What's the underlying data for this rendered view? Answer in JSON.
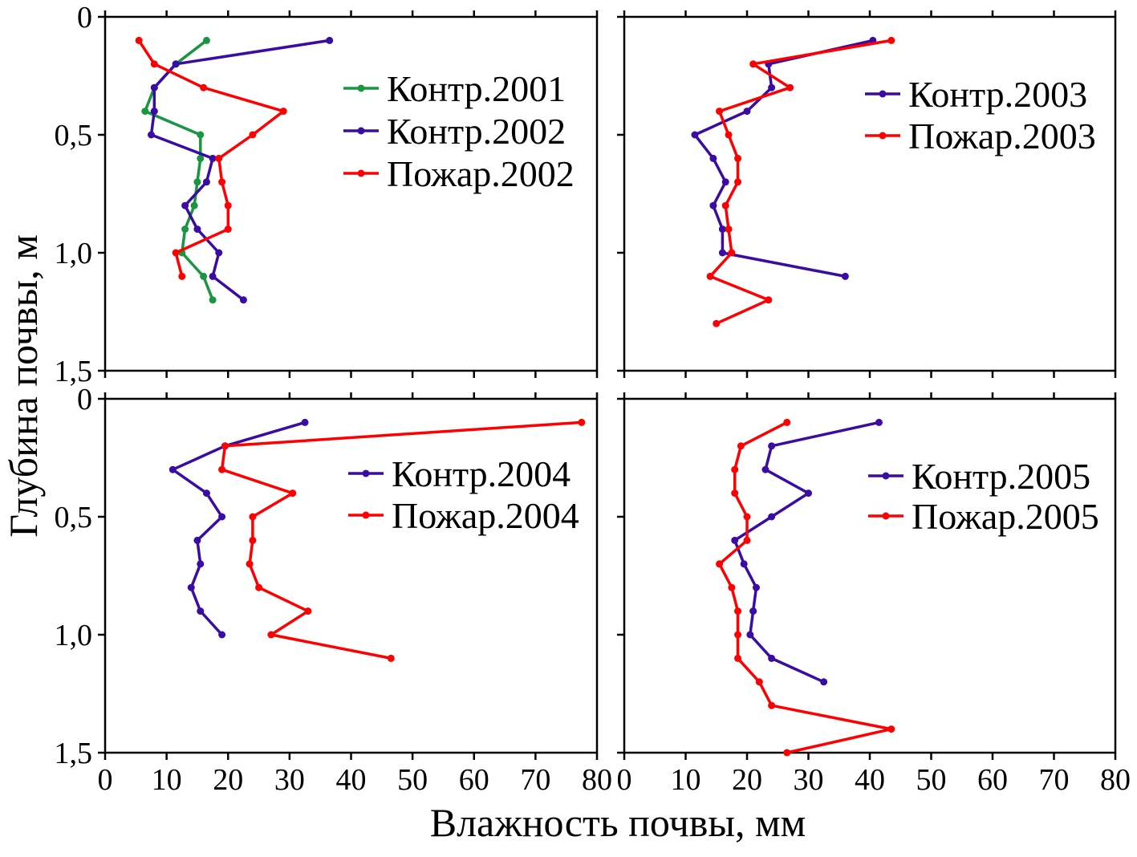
{
  "figure": {
    "xlabel": "Влажность почвы, мм",
    "ylabel": "Глубина почвы, м",
    "x_ticks": [
      "0",
      "10",
      "20",
      "30",
      "40",
      "50",
      "60",
      "70",
      "80"
    ],
    "y_ticks": [
      "0",
      "0,5",
      "1,0",
      "1,5"
    ]
  },
  "colors": {
    "green": "#1a9641",
    "purple": "#3a0ca3",
    "red": "#ff0000"
  },
  "chart_data": [
    {
      "type": "line",
      "panel": "top-left",
      "xlim": [
        0,
        80
      ],
      "ylim": [
        0,
        1.5
      ],
      "y_inverted": true,
      "legend_position": "right",
      "series": [
        {
          "name": "Контр.2001",
          "color": "#1a9641",
          "points": [
            [
              16.5,
              0.1
            ],
            [
              11.5,
              0.2
            ],
            [
              8,
              0.3
            ],
            [
              6.5,
              0.4
            ],
            [
              15.5,
              0.5
            ],
            [
              15.5,
              0.6
            ],
            [
              15,
              0.7
            ],
            [
              14.5,
              0.8
            ],
            [
              13,
              0.9
            ],
            [
              12.5,
              1.0
            ],
            [
              16,
              1.1
            ],
            [
              17.5,
              1.2
            ]
          ]
        },
        {
          "name": "Контр.2002",
          "color": "#3a0ca3",
          "points": [
            [
              36.5,
              0.1
            ],
            [
              11.5,
              0.2
            ],
            [
              8,
              0.3
            ],
            [
              8,
              0.4
            ],
            [
              7.5,
              0.5
            ],
            [
              17.5,
              0.6
            ],
            [
              16.5,
              0.7
            ],
            [
              13,
              0.8
            ],
            [
              15,
              0.9
            ],
            [
              18.5,
              1.0
            ],
            [
              17.5,
              1.1
            ],
            [
              22.5,
              1.2
            ]
          ]
        },
        {
          "name": "Пожар.2002",
          "color": "#ff0000",
          "points": [
            [
              5.5,
              0.1
            ],
            [
              8,
              0.2
            ],
            [
              16,
              0.3
            ],
            [
              29,
              0.4
            ],
            [
              24,
              0.5
            ],
            [
              18.5,
              0.6
            ],
            [
              19,
              0.7
            ],
            [
              20,
              0.8
            ],
            [
              20,
              0.9
            ],
            [
              11.5,
              1.0
            ],
            [
              12.5,
              1.1
            ]
          ]
        }
      ]
    },
    {
      "type": "line",
      "panel": "top-right",
      "xlim": [
        0,
        80
      ],
      "ylim": [
        0,
        1.5
      ],
      "y_inverted": true,
      "legend_position": "top-right",
      "series": [
        {
          "name": "Контр.2003",
          "color": "#3a0ca3",
          "points": [
            [
              40.5,
              0.1
            ],
            [
              23.5,
              0.2
            ],
            [
              24,
              0.3
            ],
            [
              20,
              0.4
            ],
            [
              11.5,
              0.5
            ],
            [
              14.5,
              0.6
            ],
            [
              16.5,
              0.7
            ],
            [
              14.5,
              0.8
            ],
            [
              16,
              0.9
            ],
            [
              16,
              1.0
            ],
            [
              36,
              1.1
            ]
          ]
        },
        {
          "name": "Пожар.2003",
          "color": "#ff0000",
          "points": [
            [
              43.5,
              0.1
            ],
            [
              21,
              0.2
            ],
            [
              27,
              0.3
            ],
            [
              15.5,
              0.4
            ],
            [
              17,
              0.5
            ],
            [
              18.5,
              0.6
            ],
            [
              18.5,
              0.7
            ],
            [
              16.5,
              0.8
            ],
            [
              17,
              0.9
            ],
            [
              17.5,
              1.0
            ],
            [
              14,
              1.1
            ],
            [
              23.5,
              1.2
            ],
            [
              15,
              1.3
            ]
          ]
        }
      ]
    },
    {
      "type": "line",
      "panel": "bottom-left",
      "xlim": [
        0,
        80
      ],
      "ylim": [
        0,
        1.5
      ],
      "y_inverted": true,
      "legend_position": "top-right",
      "series": [
        {
          "name": "Контр.2004",
          "color": "#3a0ca3",
          "points": [
            [
              32.5,
              0.1
            ],
            [
              19.5,
              0.2
            ],
            [
              11,
              0.3
            ],
            [
              16.5,
              0.4
            ],
            [
              19,
              0.5
            ],
            [
              15,
              0.6
            ],
            [
              15.5,
              0.7
            ],
            [
              14,
              0.8
            ],
            [
              15.5,
              0.9
            ],
            [
              19,
              1.0
            ]
          ]
        },
        {
          "name": "Пожар.2004",
          "color": "#ff0000",
          "points": [
            [
              77.5,
              0.1
            ],
            [
              19.5,
              0.2
            ],
            [
              19,
              0.3
            ],
            [
              30.5,
              0.4
            ],
            [
              24,
              0.5
            ],
            [
              24,
              0.6
            ],
            [
              23.5,
              0.7
            ],
            [
              25,
              0.8
            ],
            [
              33,
              0.9
            ],
            [
              27,
              1.0
            ],
            [
              46.5,
              1.1
            ]
          ]
        }
      ]
    },
    {
      "type": "line",
      "panel": "bottom-right",
      "xlim": [
        0,
        80
      ],
      "ylim": [
        0,
        1.5
      ],
      "y_inverted": true,
      "legend_position": "top-right",
      "series": [
        {
          "name": "Контр.2005",
          "color": "#3a0ca3",
          "points": [
            [
              41.5,
              0.1
            ],
            [
              24,
              0.2
            ],
            [
              23,
              0.3
            ],
            [
              30,
              0.4
            ],
            [
              24,
              0.5
            ],
            [
              18,
              0.6
            ],
            [
              19.5,
              0.7
            ],
            [
              21.5,
              0.8
            ],
            [
              21,
              0.9
            ],
            [
              20.5,
              1.0
            ],
            [
              24,
              1.1
            ],
            [
              32.5,
              1.2
            ]
          ]
        },
        {
          "name": "Пожар.2005",
          "color": "#ff0000",
          "points": [
            [
              26.5,
              0.1
            ],
            [
              19,
              0.2
            ],
            [
              18,
              0.3
            ],
            [
              18,
              0.4
            ],
            [
              20,
              0.5
            ],
            [
              20,
              0.6
            ],
            [
              15.5,
              0.7
            ],
            [
              17.5,
              0.8
            ],
            [
              18.5,
              0.9
            ],
            [
              18.5,
              1.0
            ],
            [
              18.5,
              1.1
            ],
            [
              22,
              1.2
            ],
            [
              24,
              1.3
            ],
            [
              43.5,
              1.4
            ],
            [
              26.5,
              1.5
            ]
          ]
        }
      ]
    }
  ]
}
